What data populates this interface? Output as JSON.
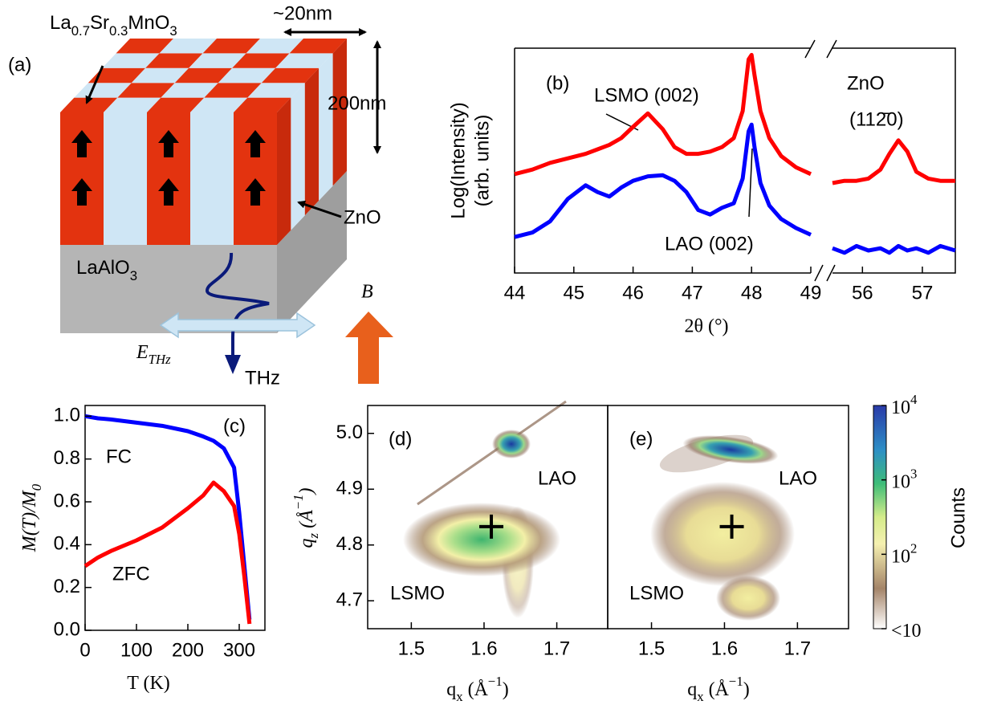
{
  "diagram": {
    "label": "(a)",
    "film": [
      "La",
      "0.7",
      "Sr",
      "0.3",
      "MnO",
      "3"
    ],
    "pillar_width": "~20nm",
    "thickness": "200nm",
    "pillar": "ZnO",
    "substrate": [
      "LaAlO",
      "3"
    ],
    "field": [
      "E",
      "THz"
    ],
    "beam": "THz",
    "magnetic_field": "B"
  },
  "chart_data": [
    {
      "type": "line",
      "label": "(b)",
      "y_label": [
        "Log(Intensity)",
        "(arb. units)"
      ],
      "x_label": "2θ (°)",
      "x": [
        44,
        44.3,
        44.6,
        44.9,
        45.2,
        45.4,
        45.6,
        45.8,
        46,
        46.25,
        46.5,
        46.7,
        46.9,
        47.1,
        47.3,
        47.5,
        47.7,
        47.85,
        47.95,
        48.0,
        48.05,
        48.15,
        48.3,
        48.5,
        48.75,
        49
      ],
      "series": [
        {
          "color": "#ff0000",
          "values": [
            4.4,
            4.6,
            4.9,
            5.1,
            5.3,
            5.5,
            5.7,
            6.0,
            6.5,
            7.1,
            6.4,
            5.6,
            5.3,
            5.3,
            5.4,
            5.6,
            6.0,
            7.2,
            9.5,
            9.7,
            8.8,
            7.2,
            6.0,
            5.2,
            4.7,
            4.4
          ]
        },
        {
          "color": "#0000ff",
          "values": [
            1.6,
            1.8,
            2.3,
            3.3,
            3.9,
            3.6,
            3.4,
            3.8,
            4.1,
            4.3,
            4.35,
            4.1,
            3.6,
            2.8,
            2.6,
            2.9,
            3.1,
            4.2,
            6.3,
            6.6,
            5.6,
            4.0,
            3.0,
            2.4,
            2.0,
            1.7
          ]
        }
      ],
      "xlim": [
        44,
        49
      ],
      "ylim": [
        0,
        10
      ],
      "xticks": [
        44,
        45,
        46,
        47,
        48,
        49
      ],
      "annotations": [
        "LSMO (002)",
        "LAO (002)"
      ]
    },
    {
      "type": "line",
      "x": [
        55.5,
        55.7,
        55.9,
        56.1,
        56.3,
        56.45,
        56.6,
        56.75,
        56.9,
        57.1,
        57.3,
        57.55
      ],
      "series": [
        {
          "color": "#ff0000",
          "values": [
            4.0,
            4.1,
            4.1,
            4.2,
            4.6,
            5.3,
            5.9,
            5.4,
            4.5,
            4.2,
            4.1,
            4.1
          ]
        },
        {
          "color": "#0000ff",
          "values": [
            1.1,
            0.9,
            1.2,
            1.0,
            1.1,
            0.9,
            1.2,
            1.0,
            1.1,
            0.9,
            1.2,
            1.0
          ]
        }
      ],
      "xlim": [
        55.5,
        57.55
      ],
      "ylim": [
        0,
        10
      ],
      "xticks": [
        56,
        57
      ],
      "annotations": [
        "ZnO",
        "(112̄0)"
      ]
    },
    {
      "type": "line",
      "label": "(c)",
      "x_label": [
        "T",
        " (K)"
      ],
      "y_label": [
        "M(T)/M",
        "0"
      ],
      "x": [
        0,
        25,
        50,
        100,
        150,
        200,
        230,
        250,
        270,
        290,
        300,
        310,
        320
      ],
      "series": [
        {
          "name": "FC",
          "color": "#0000ff",
          "values": [
            1.0,
            0.99,
            0.985,
            0.97,
            0.955,
            0.93,
            0.905,
            0.885,
            0.85,
            0.76,
            0.55,
            0.3,
            0.05
          ]
        },
        {
          "name": "ZFC",
          "color": "#ff0000",
          "values": [
            0.3,
            0.34,
            0.37,
            0.42,
            0.48,
            0.57,
            0.63,
            0.69,
            0.65,
            0.58,
            0.45,
            0.25,
            0.03
          ]
        }
      ],
      "xlim": [
        0,
        350
      ],
      "ylim": [
        0,
        1.05
      ],
      "xticks": [
        0,
        100,
        200,
        300
      ],
      "yticks": [
        {
          "value": 0,
          "label": "0.0"
        },
        {
          "value": 0.2,
          "label": "0.2"
        },
        {
          "value": 0.4,
          "label": "0.4"
        },
        {
          "value": 0.6,
          "label": "0.6"
        },
        {
          "value": 0.8,
          "label": "0.8"
        },
        {
          "value": 1,
          "label": "1.0"
        }
      ]
    },
    {
      "type": "heatmap",
      "label": "(d)",
      "x_label": [
        "q",
        "x",
        " (Å",
        "−1",
        ")"
      ],
      "y_label": [
        "q",
        "z",
        " (Å",
        "−1",
        ")"
      ],
      "xlim": [
        1.44,
        1.77
      ],
      "ylim": [
        4.65,
        5.05
      ],
      "xticks": [
        1.5,
        1.6,
        1.7
      ],
      "yticks": [
        4.7,
        4.8,
        4.9,
        {
          "value": 5,
          "label": "5.0"
        }
      ],
      "marker": {
        "x": 1.61,
        "y": 4.833
      },
      "annotations": [
        "LAO",
        "LSMO"
      ]
    },
    {
      "type": "heatmap",
      "label": "(e)",
      "x_label": [
        "q",
        "x",
        " (Å",
        "−1",
        ")"
      ],
      "xlim": [
        1.44,
        1.77
      ],
      "ylim": [
        4.65,
        5.05
      ],
      "xticks": [
        1.5,
        1.6,
        1.7
      ],
      "marker": {
        "x": 1.61,
        "y": 4.833
      },
      "annotations": [
        "LAO",
        "LSMO"
      ],
      "colorbar": {
        "label": "Counts",
        "scale": "log",
        "lim": [
          10,
          10000
        ],
        "ticks": [
          {
            "value": 10000,
            "label": [
              "10",
              "4"
            ]
          },
          {
            "value": 1000,
            "label": [
              "10",
              "3"
            ]
          },
          {
            "value": 100,
            "label": [
              "10",
              "2"
            ]
          },
          {
            "value": 10,
            "label": [
              "<10"
            ]
          }
        ]
      }
    }
  ]
}
